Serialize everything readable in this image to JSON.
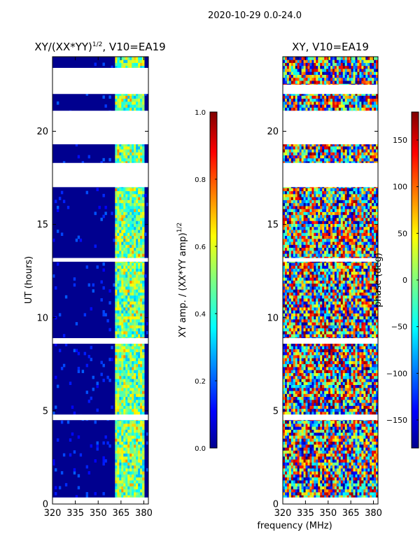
{
  "figure_title": "2020-10-29 0.0-24.0",
  "colors": {
    "background": "#ffffff",
    "axis": "#000000",
    "low": "#00008f",
    "cyan": "#00ffff",
    "yellow": "#ffff00",
    "high": "#800000"
  },
  "chart_data": [
    {
      "type": "heatmap",
      "panel": "left",
      "title_main": "XY/(XX*YY)",
      "title_exp": "1/2",
      "title_tail": ", V10=EA19",
      "xlabel": "",
      "ylabel": "UT (hours)",
      "xlim": [
        320,
        383
      ],
      "ylim": [
        0,
        24
      ],
      "xticks": [
        320,
        335,
        350,
        365,
        380
      ],
      "yticks": [
        0,
        5,
        10,
        15,
        20
      ],
      "colorbar": {
        "label_main": "XY amp. / (XX*YY amp)",
        "label_exp": "1/2",
        "range": [
          0.0,
          1.0
        ],
        "ticks": [
          "0.0",
          "0.2",
          "0.4",
          "0.6",
          "0.8",
          "1.0"
        ],
        "tick_values": [
          0.0,
          0.2,
          0.4,
          0.6,
          0.8,
          1.0
        ]
      },
      "blank_ut_ranges": [
        [
          22.0,
          23.4
        ],
        [
          19.3,
          21.1
        ],
        [
          17.0,
          18.3
        ],
        [
          13.0,
          13.2
        ],
        [
          8.6,
          8.9
        ],
        [
          4.5,
          4.8
        ],
        [
          0.0,
          0.35
        ]
      ],
      "bright_band_mhz": [
        361,
        380
      ]
    },
    {
      "type": "heatmap",
      "panel": "right",
      "title_main": "XY, V10=EA19",
      "xlabel": "frequency (MHz)",
      "ylabel": "",
      "xlim": [
        320,
        383
      ],
      "ylim": [
        0,
        24
      ],
      "xticks": [
        320,
        335,
        350,
        365,
        380
      ],
      "yticks": [
        0,
        5,
        10,
        15,
        20
      ],
      "colorbar": {
        "label_main": "phase (deg)",
        "range": [
          -180,
          180
        ],
        "ticks": [
          "150",
          "100",
          "50",
          "0",
          "−50",
          "−100",
          "−150"
        ],
        "tick_values": [
          150,
          100,
          50,
          0,
          -50,
          -100,
          -150
        ]
      },
      "blank_ut_ranges": [
        [
          22.0,
          22.5
        ],
        [
          19.3,
          21.1
        ],
        [
          17.0,
          18.3
        ],
        [
          13.0,
          13.2
        ],
        [
          8.6,
          8.9
        ],
        [
          4.5,
          4.8
        ],
        [
          0.0,
          0.35
        ]
      ]
    }
  ]
}
